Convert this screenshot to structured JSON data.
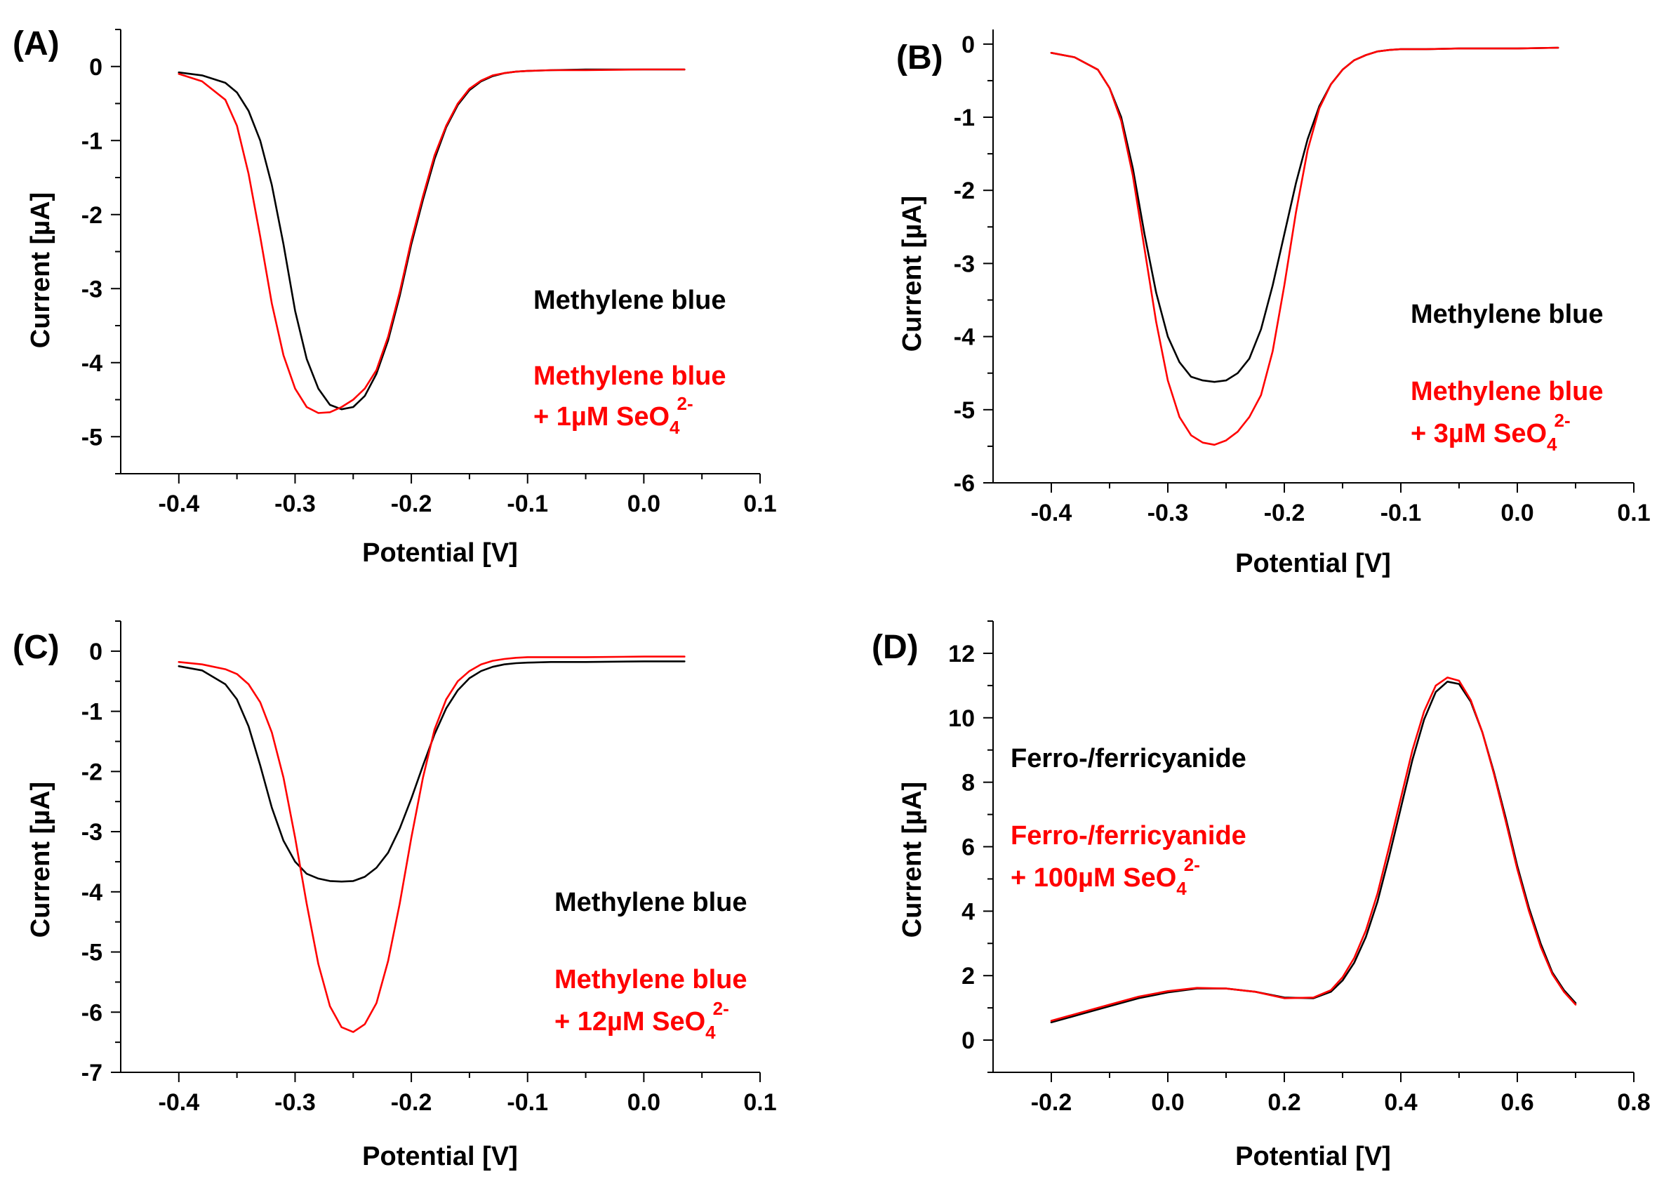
{
  "chart_data": [
    {
      "type": "line",
      "panel_label": "(A)",
      "xlabel": "Potential [V]",
      "ylabel": "Current [µA]",
      "xlim": [
        -0.45,
        0.1
      ],
      "ylim": [
        -5.5,
        0.5
      ],
      "xticks": [
        -0.4,
        -0.3,
        -0.2,
        -0.1,
        0.0,
        0.1
      ],
      "yticks": [
        0,
        -1,
        -2,
        -3,
        -4,
        -5
      ],
      "xtick_labels": [
        "-0.4",
        "-0.3",
        "-0.2",
        "-0.1",
        "0.0",
        "0.1"
      ],
      "ytick_labels": [
        "0",
        "-1",
        "-2",
        "-3",
        "-4",
        "-5"
      ],
      "annotations": [
        {
          "lines": [
            {
              "text": "Methylene blue"
            }
          ],
          "color": "#000000"
        },
        {
          "lines": [
            {
              "text": "Methylene blue"
            },
            {
              "text": "+ 1µM SeO",
              "sub": "4",
              "sup": "2-"
            }
          ],
          "color": "#ff0000"
        }
      ],
      "series": [
        {
          "color": "#000000",
          "x": [
            -0.4,
            -0.38,
            -0.36,
            -0.35,
            -0.34,
            -0.33,
            -0.32,
            -0.31,
            -0.3,
            -0.29,
            -0.28,
            -0.27,
            -0.26,
            -0.25,
            -0.24,
            -0.23,
            -0.22,
            -0.21,
            -0.2,
            -0.19,
            -0.18,
            -0.17,
            -0.16,
            -0.15,
            -0.14,
            -0.13,
            -0.12,
            -0.11,
            -0.1,
            -0.08,
            -0.05,
            0.0,
            0.035
          ],
          "y": [
            -0.08,
            -0.12,
            -0.22,
            -0.35,
            -0.6,
            -1.0,
            -1.6,
            -2.4,
            -3.3,
            -3.95,
            -4.35,
            -4.57,
            -4.63,
            -4.6,
            -4.45,
            -4.15,
            -3.7,
            -3.1,
            -2.4,
            -1.8,
            -1.25,
            -0.82,
            -0.52,
            -0.32,
            -0.2,
            -0.13,
            -0.09,
            -0.07,
            -0.06,
            -0.05,
            -0.04,
            -0.04,
            -0.04
          ]
        },
        {
          "color": "#ff0000",
          "x": [
            -0.4,
            -0.38,
            -0.36,
            -0.35,
            -0.34,
            -0.33,
            -0.32,
            -0.31,
            -0.3,
            -0.29,
            -0.28,
            -0.27,
            -0.26,
            -0.25,
            -0.24,
            -0.23,
            -0.22,
            -0.21,
            -0.2,
            -0.19,
            -0.18,
            -0.17,
            -0.16,
            -0.15,
            -0.14,
            -0.13,
            -0.12,
            -0.11,
            -0.1,
            -0.08,
            -0.05,
            0.0,
            0.035
          ],
          "y": [
            -0.1,
            -0.2,
            -0.45,
            -0.8,
            -1.45,
            -2.3,
            -3.2,
            -3.9,
            -4.35,
            -4.6,
            -4.68,
            -4.67,
            -4.6,
            -4.5,
            -4.35,
            -4.1,
            -3.65,
            -3.05,
            -2.35,
            -1.75,
            -1.2,
            -0.8,
            -0.5,
            -0.3,
            -0.19,
            -0.12,
            -0.09,
            -0.07,
            -0.06,
            -0.05,
            -0.05,
            -0.04,
            -0.04
          ]
        }
      ]
    },
    {
      "type": "line",
      "panel_label": "(B)",
      "xlabel": "Potential [V]",
      "ylabel": "Current [µA]",
      "xlim": [
        -0.45,
        0.1
      ],
      "ylim": [
        -6,
        0.2
      ],
      "xticks": [
        -0.4,
        -0.3,
        -0.2,
        -0.1,
        0.0,
        0.1
      ],
      "yticks": [
        0,
        -1,
        -2,
        -3,
        -4,
        -5,
        -6
      ],
      "xtick_labels": [
        "-0.4",
        "-0.3",
        "-0.2",
        "-0.1",
        "0.0",
        "0.1"
      ],
      "ytick_labels": [
        "0",
        "-1",
        "-2",
        "-3",
        "-4",
        "-5",
        "-6"
      ],
      "annotations": [
        {
          "lines": [
            {
              "text": "Methylene blue"
            }
          ],
          "color": "#000000"
        },
        {
          "lines": [
            {
              "text": "Methylene blue"
            },
            {
              "text": "+ 3µM SeO",
              "sub": "4",
              "sup": "2-"
            }
          ],
          "color": "#ff0000"
        }
      ],
      "series": [
        {
          "color": "#000000",
          "x": [
            -0.4,
            -0.38,
            -0.36,
            -0.35,
            -0.34,
            -0.33,
            -0.32,
            -0.31,
            -0.3,
            -0.29,
            -0.28,
            -0.27,
            -0.26,
            -0.25,
            -0.24,
            -0.23,
            -0.22,
            -0.21,
            -0.2,
            -0.19,
            -0.18,
            -0.17,
            -0.16,
            -0.15,
            -0.14,
            -0.13,
            -0.12,
            -0.11,
            -0.1,
            -0.08,
            -0.05,
            0.0,
            0.035
          ],
          "y": [
            -0.12,
            -0.18,
            -0.35,
            -0.6,
            -1.0,
            -1.7,
            -2.6,
            -3.4,
            -4.0,
            -4.35,
            -4.55,
            -4.6,
            -4.62,
            -4.6,
            -4.5,
            -4.3,
            -3.9,
            -3.3,
            -2.6,
            -1.9,
            -1.3,
            -0.85,
            -0.55,
            -0.35,
            -0.22,
            -0.15,
            -0.1,
            -0.08,
            -0.07,
            -0.07,
            -0.06,
            -0.06,
            -0.05
          ]
        },
        {
          "color": "#ff0000",
          "x": [
            -0.4,
            -0.38,
            -0.36,
            -0.35,
            -0.34,
            -0.33,
            -0.32,
            -0.31,
            -0.3,
            -0.29,
            -0.28,
            -0.27,
            -0.26,
            -0.25,
            -0.24,
            -0.23,
            -0.22,
            -0.21,
            -0.2,
            -0.19,
            -0.18,
            -0.17,
            -0.16,
            -0.15,
            -0.14,
            -0.13,
            -0.12,
            -0.11,
            -0.1,
            -0.08,
            -0.05,
            0.0,
            0.035
          ],
          "y": [
            -0.12,
            -0.18,
            -0.35,
            -0.6,
            -1.05,
            -1.8,
            -2.8,
            -3.8,
            -4.6,
            -5.1,
            -5.35,
            -5.45,
            -5.48,
            -5.42,
            -5.3,
            -5.1,
            -4.8,
            -4.2,
            -3.3,
            -2.3,
            -1.45,
            -0.88,
            -0.55,
            -0.35,
            -0.22,
            -0.15,
            -0.1,
            -0.08,
            -0.07,
            -0.07,
            -0.06,
            -0.06,
            -0.05
          ]
        }
      ]
    },
    {
      "type": "line",
      "panel_label": "(C)",
      "xlabel": "Potential [V]",
      "ylabel": "Current [µA]",
      "xlim": [
        -0.45,
        0.1
      ],
      "ylim": [
        -7,
        0.5
      ],
      "xticks": [
        -0.4,
        -0.3,
        -0.2,
        -0.1,
        0.0,
        0.1
      ],
      "yticks": [
        0,
        -1,
        -2,
        -3,
        -4,
        -5,
        -6,
        -7
      ],
      "xtick_labels": [
        "-0.4",
        "-0.3",
        "-0.2",
        "-0.1",
        "0.0",
        "0.1"
      ],
      "ytick_labels": [
        "0",
        "-1",
        "-2",
        "-3",
        "-4",
        "-5",
        "-6",
        "-7"
      ],
      "annotations": [
        {
          "lines": [
            {
              "text": "Methylene blue"
            }
          ],
          "color": "#000000"
        },
        {
          "lines": [
            {
              "text": "Methylene blue"
            },
            {
              "text": "+ 12µM SeO",
              "sub": "4",
              "sup": "2-"
            }
          ],
          "color": "#ff0000"
        }
      ],
      "series": [
        {
          "color": "#000000",
          "x": [
            -0.4,
            -0.38,
            -0.36,
            -0.35,
            -0.34,
            -0.33,
            -0.32,
            -0.31,
            -0.3,
            -0.29,
            -0.28,
            -0.27,
            -0.26,
            -0.25,
            -0.24,
            -0.23,
            -0.22,
            -0.21,
            -0.2,
            -0.19,
            -0.18,
            -0.17,
            -0.16,
            -0.15,
            -0.14,
            -0.13,
            -0.12,
            -0.11,
            -0.1,
            -0.08,
            -0.05,
            0.0,
            0.035
          ],
          "y": [
            -0.25,
            -0.32,
            -0.55,
            -0.8,
            -1.25,
            -1.9,
            -2.6,
            -3.15,
            -3.5,
            -3.7,
            -3.78,
            -3.82,
            -3.83,
            -3.82,
            -3.75,
            -3.6,
            -3.35,
            -2.95,
            -2.45,
            -1.9,
            -1.38,
            -0.95,
            -0.65,
            -0.45,
            -0.33,
            -0.26,
            -0.22,
            -0.2,
            -0.19,
            -0.18,
            -0.18,
            -0.17,
            -0.17
          ]
        },
        {
          "color": "#ff0000",
          "x": [
            -0.4,
            -0.38,
            -0.36,
            -0.35,
            -0.34,
            -0.33,
            -0.32,
            -0.31,
            -0.3,
            -0.29,
            -0.28,
            -0.27,
            -0.26,
            -0.25,
            -0.24,
            -0.23,
            -0.22,
            -0.21,
            -0.2,
            -0.19,
            -0.18,
            -0.17,
            -0.16,
            -0.15,
            -0.14,
            -0.13,
            -0.12,
            -0.11,
            -0.1,
            -0.08,
            -0.05,
            0.0,
            0.035
          ],
          "y": [
            -0.18,
            -0.22,
            -0.3,
            -0.38,
            -0.55,
            -0.85,
            -1.35,
            -2.1,
            -3.1,
            -4.2,
            -5.2,
            -5.9,
            -6.25,
            -6.33,
            -6.2,
            -5.85,
            -5.15,
            -4.2,
            -3.1,
            -2.1,
            -1.3,
            -0.8,
            -0.5,
            -0.33,
            -0.22,
            -0.16,
            -0.13,
            -0.11,
            -0.1,
            -0.1,
            -0.1,
            -0.09,
            -0.09
          ]
        }
      ]
    },
    {
      "type": "line",
      "panel_label": "(D)",
      "xlabel": "Potential [V]",
      "ylabel": "Current [µA]",
      "xlim": [
        -0.3,
        0.8
      ],
      "ylim": [
        -1,
        13
      ],
      "xticks": [
        -0.2,
        0.0,
        0.2,
        0.4,
        0.6,
        0.8
      ],
      "yticks": [
        0,
        2,
        4,
        6,
        8,
        10,
        12
      ],
      "xtick_labels": [
        "-0.2",
        "0.0",
        "0.2",
        "0.4",
        "0.6",
        "0.8"
      ],
      "ytick_labels": [
        "0",
        "2",
        "4",
        "6",
        "8",
        "10",
        "12"
      ],
      "annotations": [
        {
          "lines": [
            {
              "text": "Ferro-/ferricyanide"
            }
          ],
          "color": "#000000"
        },
        {
          "lines": [
            {
              "text": "Ferro-/ferricyanide"
            },
            {
              "text": "+ 100µM SeO",
              "sub": "4",
              "sup": "2-"
            }
          ],
          "color": "#ff0000"
        }
      ],
      "series": [
        {
          "color": "#000000",
          "x": [
            -0.2,
            -0.15,
            -0.1,
            -0.05,
            0.0,
            0.05,
            0.1,
            0.15,
            0.2,
            0.25,
            0.28,
            0.3,
            0.32,
            0.34,
            0.36,
            0.38,
            0.4,
            0.42,
            0.44,
            0.46,
            0.48,
            0.5,
            0.52,
            0.54,
            0.56,
            0.58,
            0.6,
            0.62,
            0.64,
            0.66,
            0.68,
            0.7
          ],
          "y": [
            0.55,
            0.8,
            1.05,
            1.3,
            1.48,
            1.6,
            1.6,
            1.5,
            1.32,
            1.3,
            1.5,
            1.85,
            2.4,
            3.2,
            4.3,
            5.7,
            7.2,
            8.7,
            9.95,
            10.8,
            11.12,
            11.05,
            10.5,
            9.55,
            8.3,
            6.9,
            5.4,
            4.1,
            3.0,
            2.1,
            1.55,
            1.15
          ]
        },
        {
          "color": "#ff0000",
          "x": [
            -0.2,
            -0.15,
            -0.1,
            -0.05,
            0.0,
            0.05,
            0.1,
            0.15,
            0.2,
            0.25,
            0.28,
            0.3,
            0.32,
            0.34,
            0.36,
            0.38,
            0.4,
            0.42,
            0.44,
            0.46,
            0.48,
            0.5,
            0.52,
            0.54,
            0.56,
            0.58,
            0.6,
            0.62,
            0.64,
            0.66,
            0.68,
            0.7
          ],
          "y": [
            0.6,
            0.85,
            1.1,
            1.35,
            1.52,
            1.62,
            1.6,
            1.5,
            1.3,
            1.32,
            1.55,
            1.95,
            2.55,
            3.4,
            4.55,
            6.0,
            7.5,
            9.0,
            10.2,
            11.0,
            11.25,
            11.15,
            10.55,
            9.55,
            8.25,
            6.8,
            5.3,
            4.0,
            2.9,
            2.05,
            1.5,
            1.1
          ]
        }
      ]
    }
  ]
}
